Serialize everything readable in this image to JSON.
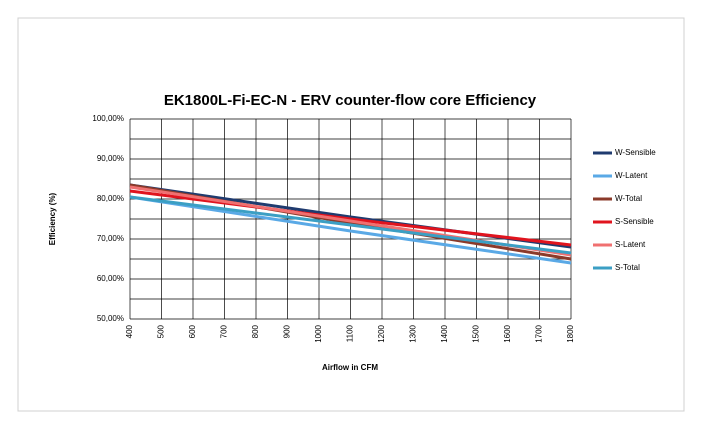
{
  "chart_data": {
    "type": "line",
    "title": "EK1800L-Fi-EC-N - ERV counter-flow core Efficiency",
    "x_label": "Airflow in CFM",
    "y_label": "Efficiency (%)",
    "x": [
      400,
      1100,
      1800
    ],
    "xlim": [
      400,
      1800
    ],
    "xticks": [
      400,
      500,
      600,
      700,
      800,
      900,
      1000,
      1100,
      1200,
      1300,
      1400,
      1500,
      1600,
      1700,
      1800
    ],
    "ylim": [
      50,
      100
    ],
    "yticks": [
      {
        "value": 50,
        "label": "50,00%"
      },
      {
        "value": 60,
        "label": "60,00%"
      },
      {
        "value": 70,
        "label": "70,00%"
      },
      {
        "value": 80,
        "label": "80,00%"
      },
      {
        "value": 90,
        "label": "90,00%"
      },
      {
        "value": 100,
        "label": "100,00%"
      }
    ],
    "minor_yticks": [
      55,
      65,
      75,
      85,
      95
    ],
    "grid": true,
    "legend": "right",
    "series": [
      {
        "name": "W-Sensible",
        "color": "#1f3b6f",
        "values": [
          83.5,
          75.5,
          68
        ]
      },
      {
        "name": "W-Latent",
        "color": "#5aa9e6",
        "values": [
          80.5,
          72,
          64
        ]
      },
      {
        "name": "W-Total",
        "color": "#8b3a2a",
        "values": [
          83.5,
          74,
          65
        ]
      },
      {
        "name": "S-Sensible",
        "color": "#e0141e",
        "values": [
          82,
          75,
          68.5
        ]
      },
      {
        "name": "S-Latent",
        "color": "#f07070",
        "values": [
          83,
          74.5,
          66
        ]
      },
      {
        "name": "S-Total",
        "color": "#3b9fc4",
        "values": [
          80.5,
          73.5,
          66.5
        ]
      }
    ]
  }
}
